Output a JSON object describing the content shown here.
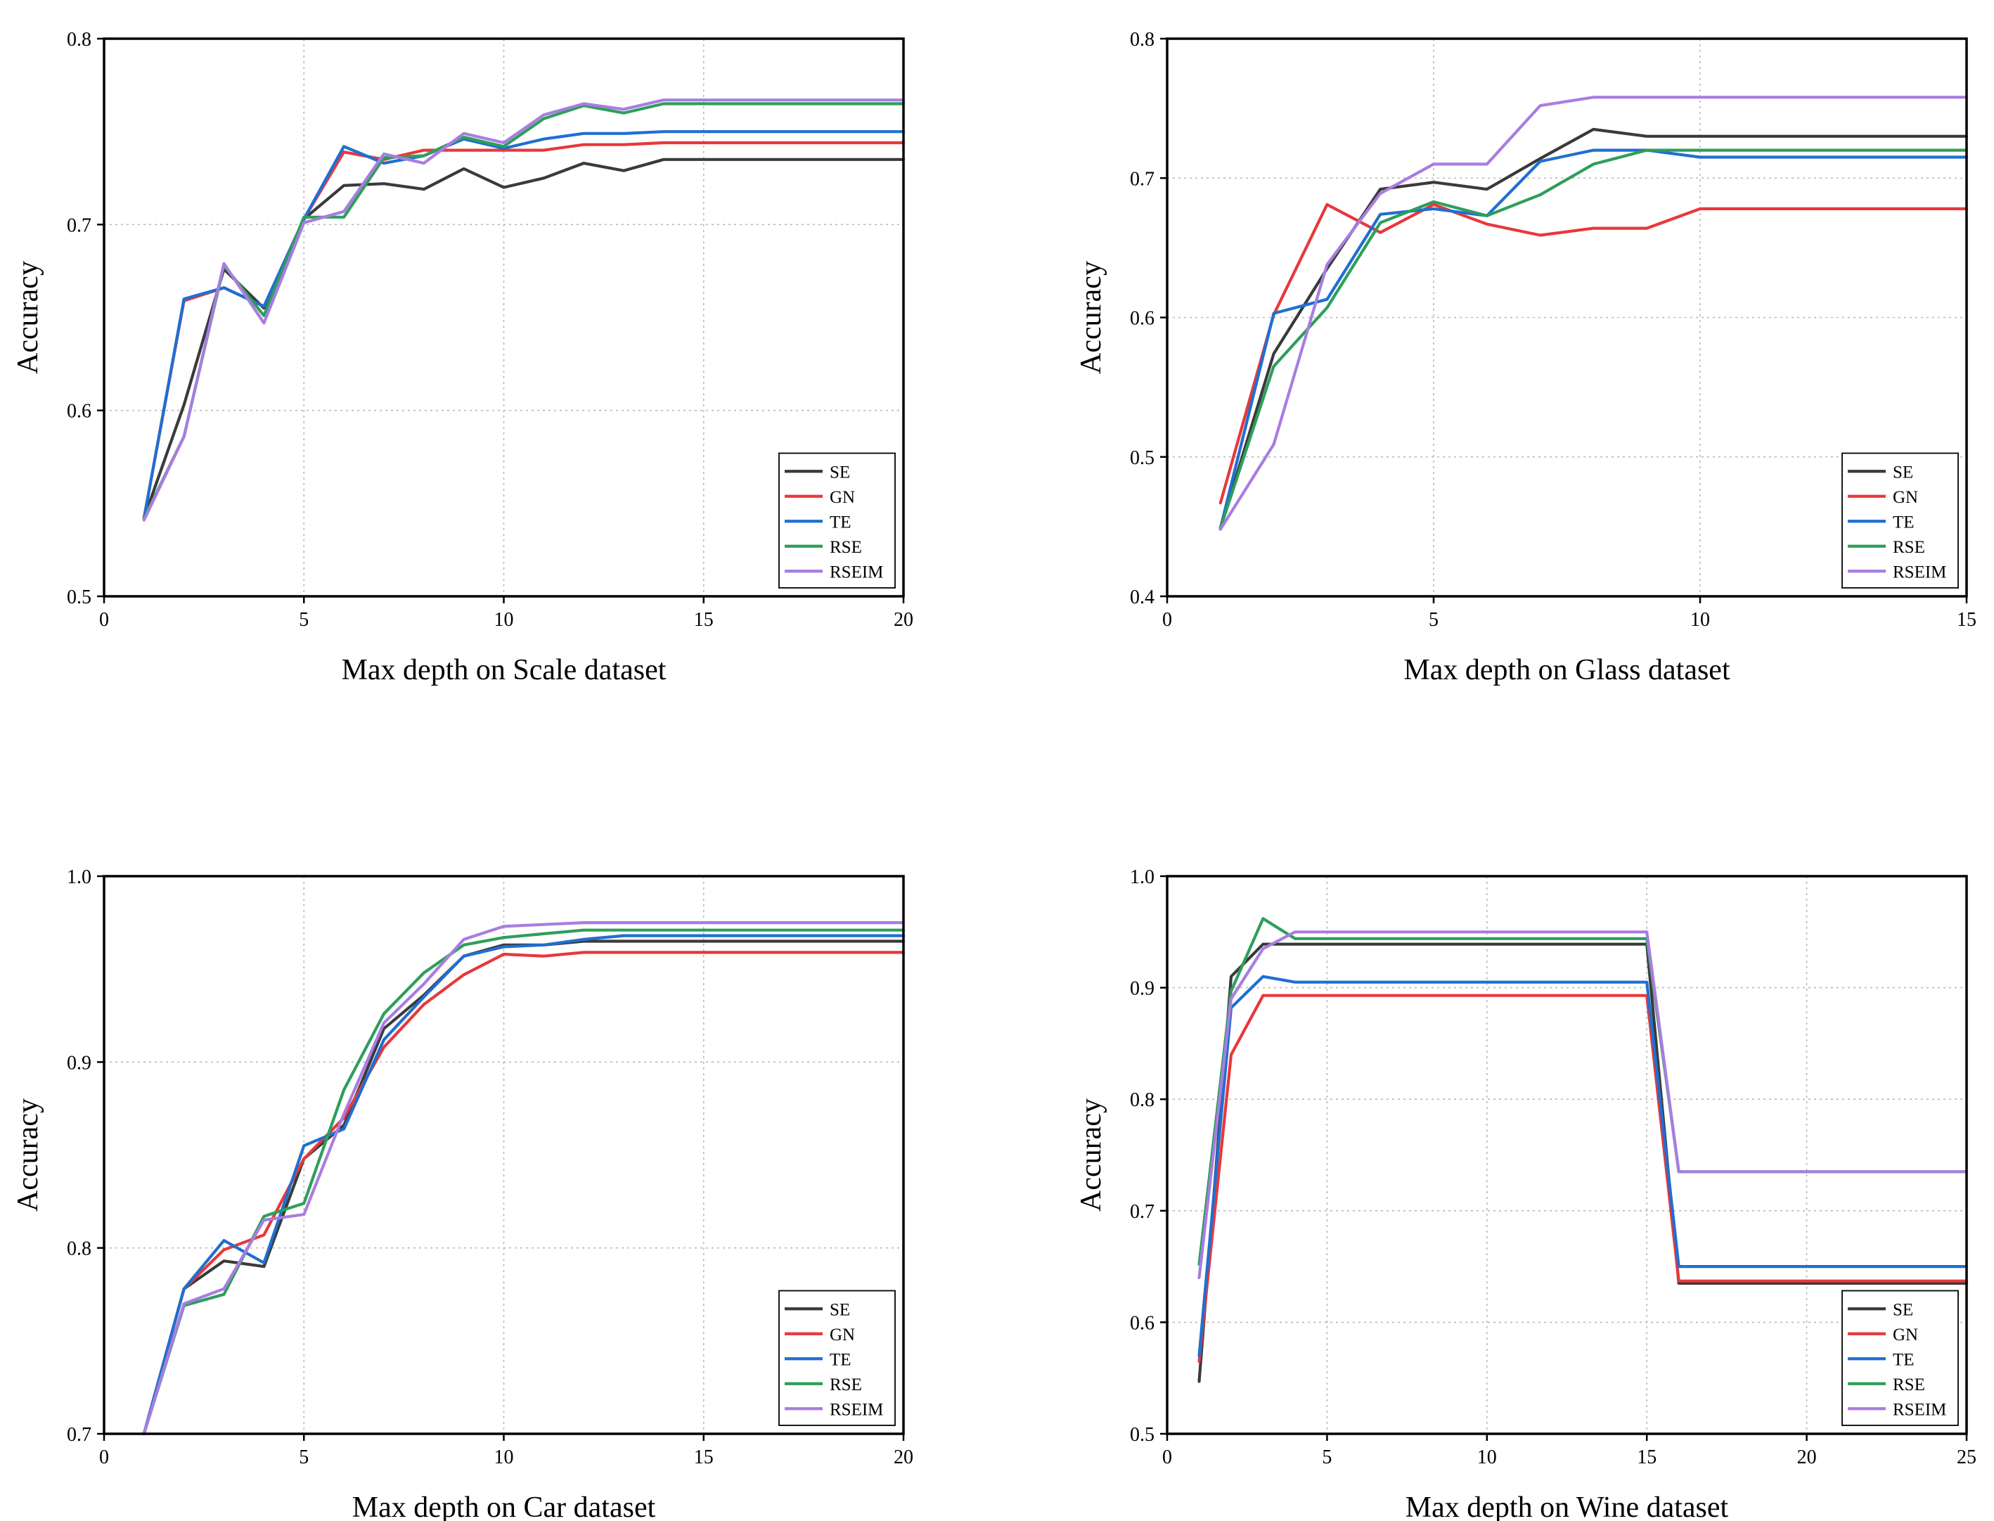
{
  "chart_data": [
    {
      "type": "line",
      "title": "",
      "xlabel": "Max depth on Scale dataset",
      "ylabel": "Accuracy",
      "xlim": [
        0,
        20
      ],
      "ylim": [
        0.5,
        0.8
      ],
      "xticks": [
        0,
        5,
        10,
        15,
        20
      ],
      "yticks": [
        0.5,
        0.6,
        0.7,
        0.8
      ],
      "xtick_labels": [
        "0",
        "5",
        "10",
        "15",
        "20"
      ],
      "ytick_labels": [
        "0.5",
        "0.6",
        "0.7",
        "0.8"
      ],
      "grid": true,
      "legend_position": "bottom-right",
      "x": [
        1,
        2,
        3,
        4,
        5,
        6,
        7,
        8,
        9,
        10,
        11,
        12,
        13,
        14,
        15,
        16,
        17,
        18,
        19,
        20
      ],
      "series": [
        {
          "name": "SE",
          "color": "#3a3a3a",
          "values": [
            0.542,
            0.603,
            0.676,
            0.655,
            0.703,
            0.721,
            0.722,
            0.719,
            0.73,
            0.72,
            0.725,
            0.733,
            0.729,
            0.735,
            0.735,
            0.735,
            0.735,
            0.735,
            0.735,
            0.735
          ]
        },
        {
          "name": "GN",
          "color": "#e8383b",
          "values": [
            0.542,
            0.659,
            0.666,
            0.656,
            0.703,
            0.739,
            0.735,
            0.74,
            0.74,
            0.74,
            0.74,
            0.743,
            0.743,
            0.744,
            0.744,
            0.744,
            0.744,
            0.744,
            0.744,
            0.744
          ]
        },
        {
          "name": "TE",
          "color": "#1f6fd1",
          "values": [
            0.542,
            0.66,
            0.666,
            0.656,
            0.703,
            0.742,
            0.733,
            0.737,
            0.746,
            0.741,
            0.746,
            0.749,
            0.749,
            0.75,
            0.75,
            0.75,
            0.75,
            0.75,
            0.75,
            0.75
          ]
        },
        {
          "name": "RSE",
          "color": "#2e9e5b",
          "values": [
            0.542,
            0.586,
            0.678,
            0.651,
            0.704,
            0.704,
            0.736,
            0.737,
            0.747,
            0.742,
            0.757,
            0.764,
            0.76,
            0.765,
            0.765,
            0.765,
            0.765,
            0.765,
            0.765,
            0.765
          ]
        },
        {
          "name": "RSEIM",
          "color": "#a87de0",
          "values": [
            0.541,
            0.586,
            0.679,
            0.647,
            0.701,
            0.707,
            0.738,
            0.733,
            0.749,
            0.744,
            0.759,
            0.765,
            0.762,
            0.767,
            0.767,
            0.767,
            0.767,
            0.767,
            0.767,
            0.767
          ]
        }
      ]
    },
    {
      "type": "line",
      "title": "",
      "xlabel": "Max depth on Glass dataset",
      "ylabel": "Accuracy",
      "xlim": [
        0,
        15
      ],
      "ylim": [
        0.4,
        0.8
      ],
      "xticks": [
        0,
        5,
        10,
        15
      ],
      "yticks": [
        0.4,
        0.5,
        0.6,
        0.7,
        0.8
      ],
      "xtick_labels": [
        "0",
        "5",
        "10",
        "15"
      ],
      "ytick_labels": [
        "0.4",
        "0.5",
        "0.6",
        "0.7",
        "0.8"
      ],
      "grid": true,
      "legend_position": "bottom-right",
      "x": [
        1,
        2,
        3,
        4,
        5,
        6,
        7,
        8,
        9,
        10,
        11,
        12,
        13,
        14,
        15
      ],
      "series": [
        {
          "name": "SE",
          "color": "#3a3a3a",
          "values": [
            0.449,
            0.574,
            0.635,
            0.692,
            0.697,
            0.692,
            0.714,
            0.735,
            0.73,
            0.73,
            0.73,
            0.73,
            0.73,
            0.73,
            0.73
          ]
        },
        {
          "name": "GN",
          "color": "#e8383b",
          "values": [
            0.467,
            0.602,
            0.681,
            0.661,
            0.681,
            0.667,
            0.659,
            0.664,
            0.664,
            0.678,
            0.678,
            0.678,
            0.678,
            0.678,
            0.678
          ]
        },
        {
          "name": "TE",
          "color": "#1f6fd1",
          "values": [
            0.449,
            0.603,
            0.613,
            0.674,
            0.678,
            0.673,
            0.712,
            0.72,
            0.72,
            0.715,
            0.715,
            0.715,
            0.715,
            0.715,
            0.715
          ]
        },
        {
          "name": "RSE",
          "color": "#2e9e5b",
          "values": [
            0.449,
            0.565,
            0.607,
            0.668,
            0.683,
            0.673,
            0.688,
            0.71,
            0.72,
            0.72,
            0.72,
            0.72,
            0.72,
            0.72,
            0.72
          ]
        },
        {
          "name": "RSEIM",
          "color": "#a87de0",
          "values": [
            0.448,
            0.509,
            0.638,
            0.689,
            0.71,
            0.71,
            0.752,
            0.758,
            0.758,
            0.758,
            0.758,
            0.758,
            0.758,
            0.758,
            0.758
          ]
        }
      ]
    },
    {
      "type": "line",
      "title": "",
      "xlabel": "Max depth on Car dataset",
      "ylabel": "Accuracy",
      "xlim": [
        0,
        20
      ],
      "ylim": [
        0.7,
        1.0
      ],
      "xticks": [
        0,
        5,
        10,
        15,
        20
      ],
      "yticks": [
        0.7,
        0.8,
        0.9,
        1.0
      ],
      "xtick_labels": [
        "0",
        "5",
        "10",
        "15",
        "20"
      ],
      "ytick_labels": [
        "0.7",
        "0.8",
        "0.9",
        "1.0"
      ],
      "grid": true,
      "legend_position": "bottom-right",
      "x": [
        1,
        2,
        3,
        4,
        5,
        6,
        7,
        8,
        9,
        10,
        11,
        12,
        13,
        14,
        15,
        16,
        17,
        18,
        19,
        20
      ],
      "series": [
        {
          "name": "SE",
          "color": "#3a3a3a",
          "values": [
            0.7,
            0.778,
            0.793,
            0.79,
            0.848,
            0.866,
            0.918,
            0.936,
            0.957,
            0.963,
            0.963,
            0.965,
            0.965,
            0.965,
            0.965,
            0.965,
            0.965,
            0.965,
            0.965,
            0.965
          ]
        },
        {
          "name": "GN",
          "color": "#e8383b",
          "values": [
            0.7,
            0.778,
            0.799,
            0.807,
            0.848,
            0.87,
            0.908,
            0.931,
            0.947,
            0.958,
            0.957,
            0.959,
            0.959,
            0.959,
            0.959,
            0.959,
            0.959,
            0.959,
            0.959,
            0.959
          ]
        },
        {
          "name": "TE",
          "color": "#1f6fd1",
          "values": [
            0.7,
            0.778,
            0.804,
            0.792,
            0.855,
            0.864,
            0.912,
            0.935,
            0.957,
            0.962,
            0.963,
            0.966,
            0.968,
            0.968,
            0.968,
            0.968,
            0.968,
            0.968,
            0.968,
            0.968
          ]
        },
        {
          "name": "RSE",
          "color": "#2e9e5b",
          "values": [
            0.7,
            0.769,
            0.775,
            0.817,
            0.824,
            0.885,
            0.926,
            0.948,
            0.963,
            0.967,
            0.969,
            0.971,
            0.971,
            0.971,
            0.971,
            0.971,
            0.971,
            0.971,
            0.971,
            0.971
          ]
        },
        {
          "name": "RSEIM",
          "color": "#a87de0",
          "values": [
            0.7,
            0.77,
            0.778,
            0.815,
            0.818,
            0.872,
            0.921,
            0.942,
            0.966,
            0.973,
            0.974,
            0.975,
            0.975,
            0.975,
            0.975,
            0.975,
            0.975,
            0.975,
            0.975,
            0.975
          ]
        }
      ]
    },
    {
      "type": "line",
      "title": "",
      "xlabel": "Max depth on Wine dataset",
      "ylabel": "Accuracy",
      "xlim": [
        0,
        25
      ],
      "ylim": [
        0.5,
        1.0
      ],
      "xticks": [
        0,
        5,
        10,
        15,
        20,
        25
      ],
      "yticks": [
        0.5,
        0.6,
        0.7,
        0.8,
        0.9,
        1.0
      ],
      "xtick_labels": [
        "0",
        "5",
        "10",
        "15",
        "20",
        "25"
      ],
      "ytick_labels": [
        "0.5",
        "0.6",
        "0.7",
        "0.8",
        "0.9",
        "1.0"
      ],
      "grid": true,
      "legend_position": "bottom-right",
      "x": [
        1,
        2,
        3,
        4,
        5,
        6,
        7,
        8,
        9,
        10,
        11,
        12,
        13,
        14,
        15,
        16,
        17,
        18,
        19,
        20,
        21,
        22,
        23,
        24,
        25
      ],
      "series": [
        {
          "name": "SE",
          "color": "#3a3a3a",
          "values": [
            0.547,
            0.91,
            0.939,
            0.939,
            0.939,
            0.939,
            0.939,
            0.939,
            0.939,
            0.939,
            0.939,
            0.939,
            0.939,
            0.939,
            0.939,
            0.635,
            0.635,
            0.635,
            0.635,
            0.635,
            0.635,
            0.635,
            0.635,
            0.635,
            0.635
          ]
        },
        {
          "name": "GN",
          "color": "#e8383b",
          "values": [
            0.565,
            0.84,
            0.893,
            0.893,
            0.893,
            0.893,
            0.893,
            0.893,
            0.893,
            0.893,
            0.893,
            0.893,
            0.893,
            0.893,
            0.893,
            0.637,
            0.637,
            0.637,
            0.637,
            0.637,
            0.637,
            0.637,
            0.637,
            0.637,
            0.637
          ]
        },
        {
          "name": "TE",
          "color": "#1f6fd1",
          "values": [
            0.57,
            0.882,
            0.91,
            0.905,
            0.905,
            0.905,
            0.905,
            0.905,
            0.905,
            0.905,
            0.905,
            0.905,
            0.905,
            0.905,
            0.905,
            0.65,
            0.65,
            0.65,
            0.65,
            0.65,
            0.65,
            0.65,
            0.65,
            0.65,
            0.65
          ]
        },
        {
          "name": "RSE",
          "color": "#2e9e5b",
          "values": [
            0.652,
            0.897,
            0.962,
            0.944,
            0.944,
            0.944,
            0.944,
            0.944,
            0.944,
            0.944,
            0.944,
            0.944,
            0.944,
            0.944,
            0.944,
            0.735,
            0.735,
            0.735,
            0.735,
            0.735,
            0.735,
            0.735,
            0.735,
            0.735,
            0.735
          ]
        },
        {
          "name": "RSEIM",
          "color": "#a87de0",
          "values": [
            0.64,
            0.89,
            0.935,
            0.95,
            0.95,
            0.95,
            0.95,
            0.95,
            0.95,
            0.95,
            0.95,
            0.95,
            0.95,
            0.95,
            0.95,
            0.735,
            0.735,
            0.735,
            0.735,
            0.735,
            0.735,
            0.735,
            0.735,
            0.735,
            0.735
          ]
        }
      ]
    }
  ]
}
